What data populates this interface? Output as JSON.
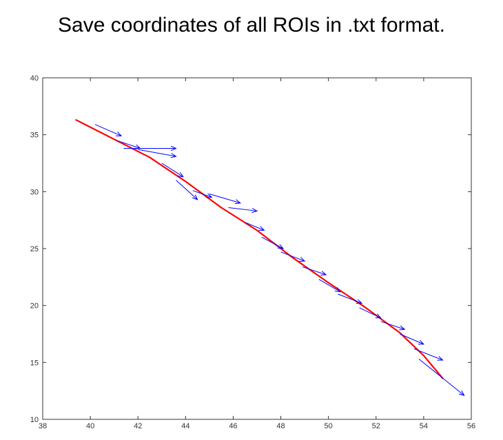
{
  "heading": "Save coordinates of all ROIs in .txt format.",
  "chart_data": {
    "type": "line",
    "title": "",
    "xlabel": "",
    "ylabel": "",
    "xlim": [
      38,
      56
    ],
    "ylim": [
      10,
      40
    ],
    "xticks": [
      38,
      40,
      42,
      44,
      46,
      48,
      50,
      52,
      54,
      56
    ],
    "yticks": [
      10,
      15,
      20,
      25,
      30,
      35,
      40
    ],
    "grid": false,
    "line_color": "#ff0000",
    "arrow_color": "#0000ff",
    "series": [
      {
        "kind": "line",
        "x": [
          39.4,
          41.0,
          42.5,
          44.0,
          45.5,
          47.0,
          48.5,
          50.0,
          51.5,
          53.0,
          54.0,
          54.8
        ],
        "y": [
          36.3,
          34.6,
          33.0,
          30.9,
          28.6,
          26.6,
          24.2,
          22.0,
          19.9,
          17.6,
          15.6,
          13.6
        ]
      },
      {
        "kind": "quiver",
        "x": [
          40.2,
          41.1,
          41.4,
          42.0,
          43.0,
          43.6,
          44.3,
          45.0,
          45.8,
          46.5,
          47.2,
          48.0,
          48.9,
          49.6,
          50.4,
          51.3,
          52.2,
          53.0,
          53.6,
          53.8
        ],
        "y": [
          35.9,
          34.5,
          33.8,
          33.7,
          32.5,
          31.0,
          30.1,
          29.8,
          28.6,
          27.3,
          26.0,
          24.7,
          23.4,
          22.3,
          21.0,
          19.8,
          18.6,
          17.5,
          16.2,
          15.3
        ],
        "u": [
          1.1,
          1.0,
          2.2,
          1.6,
          0.9,
          0.9,
          0.8,
          1.3,
          1.2,
          0.8,
          0.9,
          1.0,
          1.0,
          0.9,
          1.0,
          0.9,
          1.0,
          1.0,
          1.2,
          1.9
        ],
        "v": [
          -1.0,
          -0.7,
          0.0,
          -0.6,
          -1.2,
          -1.7,
          -0.6,
          -0.8,
          -0.3,
          -0.7,
          -1.0,
          -0.8,
          -0.7,
          -1.1,
          -0.8,
          -0.9,
          -0.7,
          -0.9,
          -1.0,
          -3.2
        ]
      }
    ]
  }
}
